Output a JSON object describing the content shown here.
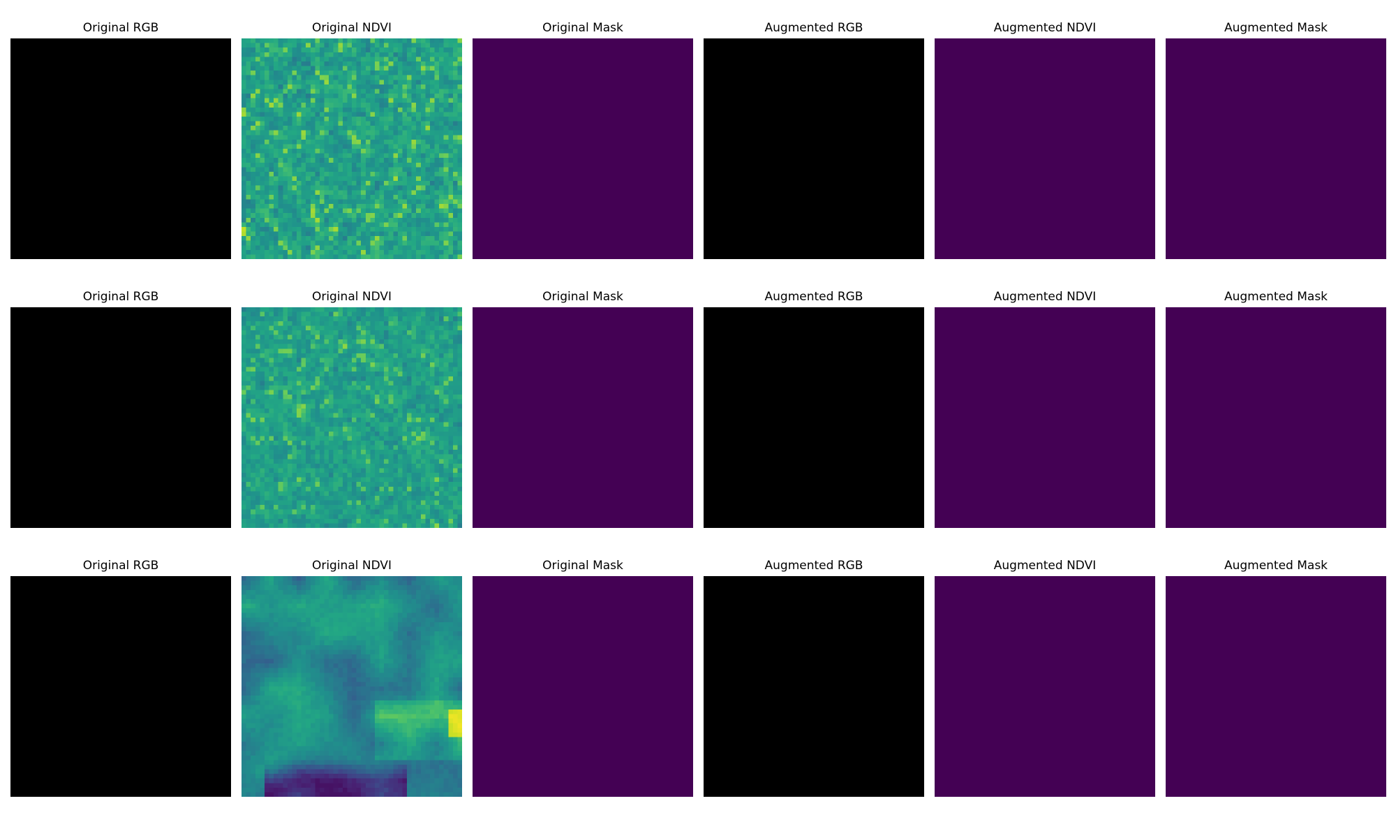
{
  "figure": {
    "background": "#ffffff",
    "rows": [
      {
        "panels": [
          {
            "title": "Original RGB",
            "kind": "solid",
            "color": "#000000"
          },
          {
            "title": "Original NDVI",
            "kind": "noise",
            "colormap": "viridis",
            "seed": 11,
            "grid": 48,
            "range": [
              0.22,
              1.0
            ]
          },
          {
            "title": "Original Mask",
            "kind": "solid",
            "color": "#440154"
          },
          {
            "title": "Augmented RGB",
            "kind": "solid",
            "color": "#000000"
          },
          {
            "title": "Augmented NDVI",
            "kind": "solid",
            "color": "#440154"
          },
          {
            "title": "Augmented Mask",
            "kind": "solid",
            "color": "#440154"
          }
        ]
      },
      {
        "panels": [
          {
            "title": "Original RGB",
            "kind": "solid",
            "color": "#000000"
          },
          {
            "title": "Original NDVI",
            "kind": "noise",
            "colormap": "viridis",
            "seed": 27,
            "grid": 48,
            "range": [
              0.28,
              0.92
            ]
          },
          {
            "title": "Original Mask",
            "kind": "solid",
            "color": "#440154"
          },
          {
            "title": "Augmented RGB",
            "kind": "solid",
            "color": "#000000"
          },
          {
            "title": "Augmented NDVI",
            "kind": "solid",
            "color": "#440154"
          },
          {
            "title": "Augmented Mask",
            "kind": "solid",
            "color": "#440154"
          }
        ]
      },
      {
        "panels": [
          {
            "title": "Original RGB",
            "kind": "solid",
            "color": "#000000"
          },
          {
            "title": "Original NDVI",
            "kind": "smooth",
            "colormap": "viridis",
            "seed": 53,
            "grid": 48,
            "range": [
              0.05,
              0.98
            ]
          },
          {
            "title": "Original Mask",
            "kind": "solid",
            "color": "#440154"
          },
          {
            "title": "Augmented RGB",
            "kind": "solid",
            "color": "#000000"
          },
          {
            "title": "Augmented NDVI",
            "kind": "solid",
            "color": "#440154"
          },
          {
            "title": "Augmented Mask",
            "kind": "solid",
            "color": "#440154"
          }
        ]
      }
    ]
  }
}
